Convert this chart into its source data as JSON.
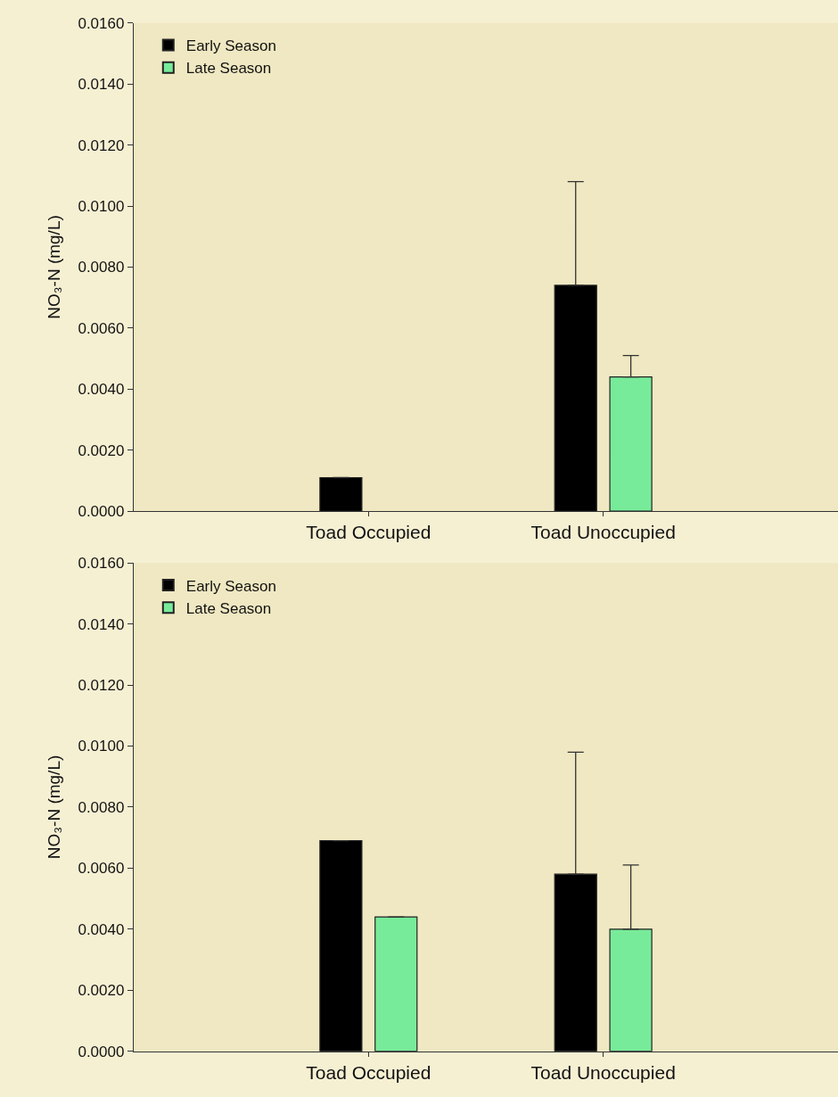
{
  "chart_data": [
    {
      "type": "bar",
      "ylabel": "NO₃-N (mg/L)",
      "categories": [
        "Toad Occupied",
        "Toad Unoccupied"
      ],
      "series": [
        {
          "name": "Early Season",
          "color": "#000000",
          "values": [
            0.0011,
            0.0074
          ],
          "errors": [
            null,
            [
              0.0074,
              0.0108
            ]
          ]
        },
        {
          "name": "Late Season",
          "color": "#78eb9a",
          "values": [
            null,
            0.0044
          ],
          "errors": [
            null,
            [
              0.0044,
              0.0051
            ]
          ]
        }
      ],
      "ylim": [
        0,
        0.016
      ],
      "yticks": [
        {
          "value": 0,
          "label": "0.0000"
        },
        {
          "value": 0.002,
          "label": "0.0020"
        },
        {
          "value": 0.004,
          "label": "0.0040"
        },
        {
          "value": 0.006,
          "label": "0.0060"
        },
        {
          "value": 0.008,
          "label": "0.0080"
        },
        {
          "value": 0.01,
          "label": "0.0100"
        },
        {
          "value": 0.012,
          "label": "0.0120"
        },
        {
          "value": 0.014,
          "label": "0.0140"
        },
        {
          "value": 0.016,
          "label": "0.0160"
        }
      ],
      "legend": "top left",
      "grid": false
    },
    {
      "type": "bar",
      "ylabel": "NO₃-N (mg/L)",
      "categories": [
        "Toad Occupied",
        "Toad Unoccupied"
      ],
      "series": [
        {
          "name": "Early Season",
          "color": "#000000",
          "values": [
            0.0069,
            0.0058
          ],
          "errors": [
            null,
            [
              0.0058,
              0.0098
            ]
          ]
        },
        {
          "name": "Late Season",
          "color": "#78eb9a",
          "values": [
            0.0044,
            0.004
          ],
          "errors": [
            null,
            [
              0.004,
              0.0061
            ]
          ]
        }
      ],
      "ylim": [
        0,
        0.016
      ],
      "yticks": [
        {
          "value": 0,
          "label": "0.0000"
        },
        {
          "value": 0.002,
          "label": "0.0020"
        },
        {
          "value": 0.004,
          "label": "0.0040"
        },
        {
          "value": 0.006,
          "label": "0.0060"
        },
        {
          "value": 0.008,
          "label": "0.0080"
        },
        {
          "value": 0.01,
          "label": "0.0100"
        },
        {
          "value": 0.012,
          "label": "0.0120"
        },
        {
          "value": 0.014,
          "label": "0.0140"
        },
        {
          "value": 0.016,
          "label": "0.0160"
        }
      ],
      "legend": "top left",
      "grid": false
    }
  ]
}
